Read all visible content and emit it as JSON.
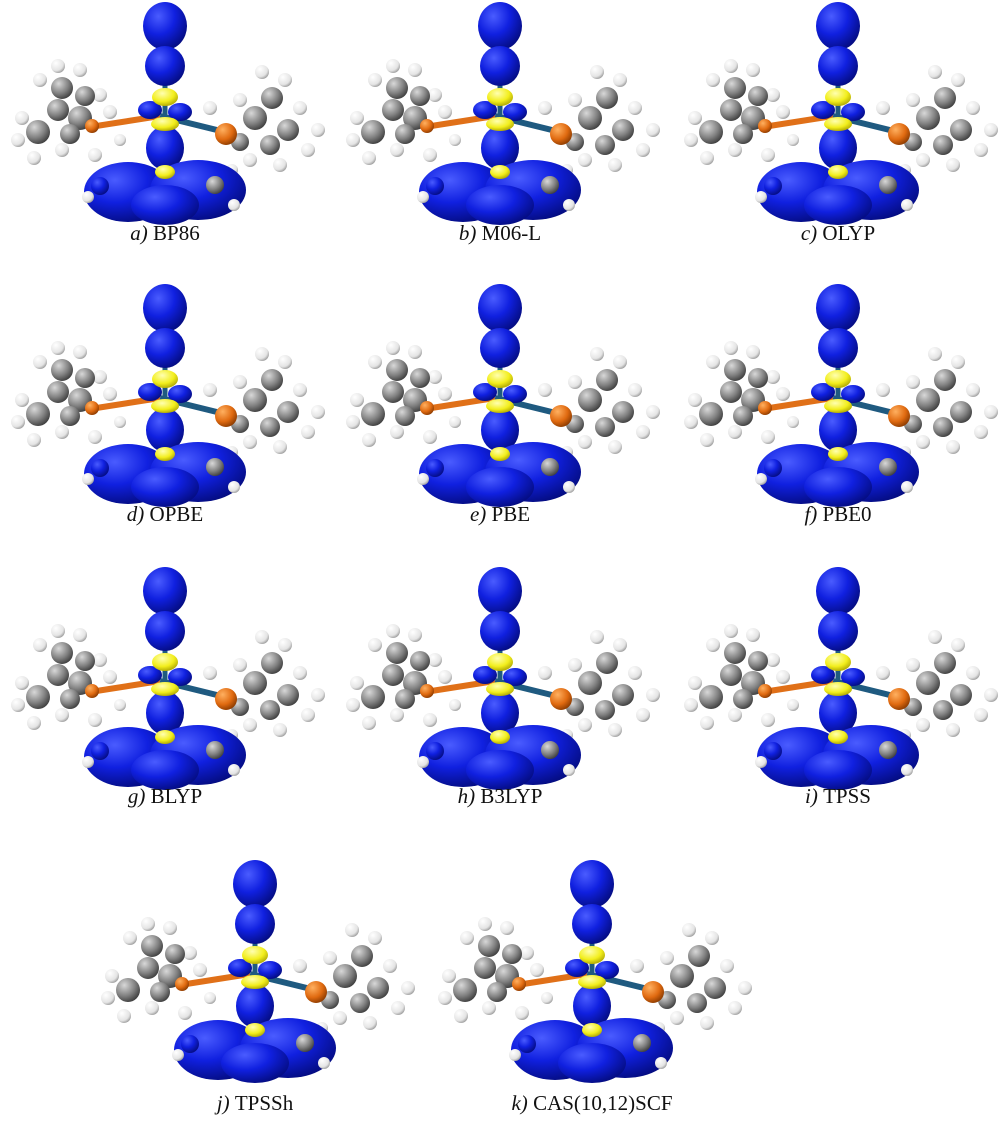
{
  "figure": {
    "panels": [
      {
        "label": "a)",
        "name": "BP86"
      },
      {
        "label": "b)",
        "name": "M06-L"
      },
      {
        "label": "c)",
        "name": "OLYP"
      },
      {
        "label": "d)",
        "name": "OPBE"
      },
      {
        "label": "e)",
        "name": "PBE"
      },
      {
        "label": "f)",
        "name": "PBE0"
      },
      {
        "label": "g)",
        "name": "BLYP"
      },
      {
        "label": "h)",
        "name": "B3LYP"
      },
      {
        "label": "i)",
        "name": "TPSS"
      },
      {
        "label": "j)",
        "name": "TPSSh"
      },
      {
        "label": "k)",
        "name": "CAS(10,12)SCF"
      }
    ]
  }
}
